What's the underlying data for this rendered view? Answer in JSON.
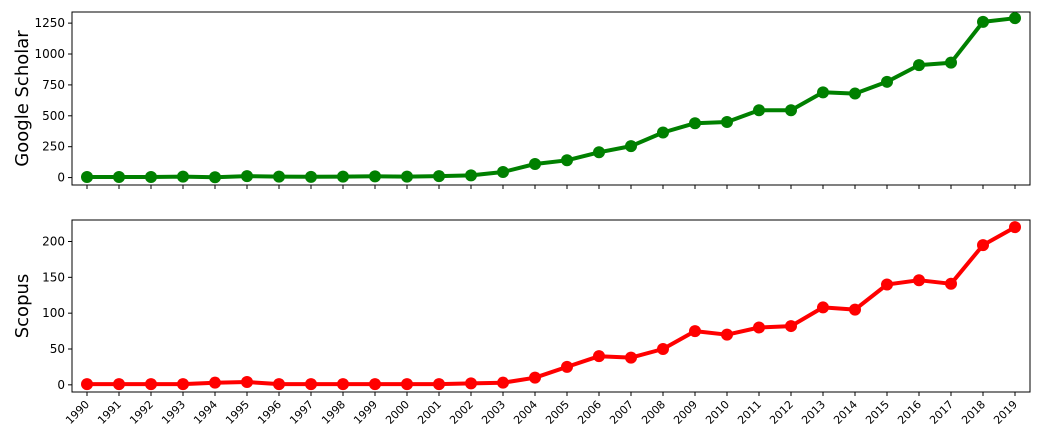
{
  "chart_data": [
    {
      "type": "line",
      "ylabel": "Google Scholar",
      "xlabel": "",
      "ylim": [
        -60,
        1340
      ],
      "yticks": [
        0,
        250,
        500,
        750,
        1000,
        1250
      ],
      "show_x_tick_labels": false,
      "color": "#008000",
      "categories": [
        "1990",
        "1991",
        "1992",
        "1993",
        "1994",
        "1995",
        "1996",
        "1997",
        "1998",
        "1999",
        "2000",
        "2001",
        "2002",
        "2003",
        "2004",
        "2005",
        "2006",
        "2007",
        "2008",
        "2009",
        "2010",
        "2011",
        "2012",
        "2013",
        "2014",
        "2015",
        "2016",
        "2017",
        "2018",
        "2019"
      ],
      "values": [
        5,
        5,
        5,
        8,
        3,
        12,
        8,
        6,
        8,
        10,
        8,
        12,
        18,
        45,
        110,
        140,
        205,
        255,
        365,
        440,
        450,
        545,
        545,
        690,
        680,
        775,
        910,
        930,
        1260,
        1290
      ]
    },
    {
      "type": "line",
      "ylabel": "Scopus",
      "xlabel": "",
      "ylim": [
        -10,
        230
      ],
      "yticks": [
        0,
        50,
        100,
        150,
        200
      ],
      "show_x_tick_labels": true,
      "color": "#ff0000",
      "categories": [
        "1990",
        "1991",
        "1992",
        "1993",
        "1994",
        "1995",
        "1996",
        "1997",
        "1998",
        "1999",
        "2000",
        "2001",
        "2002",
        "2003",
        "2004",
        "2005",
        "2006",
        "2007",
        "2008",
        "2009",
        "2010",
        "2011",
        "2012",
        "2013",
        "2014",
        "2015",
        "2016",
        "2017",
        "2018",
        "2019"
      ],
      "values": [
        1,
        1,
        1,
        1,
        3,
        4,
        1,
        1,
        1,
        1,
        1,
        1,
        2,
        3,
        10,
        25,
        40,
        38,
        50,
        75,
        70,
        80,
        82,
        108,
        105,
        140,
        146,
        141,
        195,
        220
      ]
    }
  ]
}
